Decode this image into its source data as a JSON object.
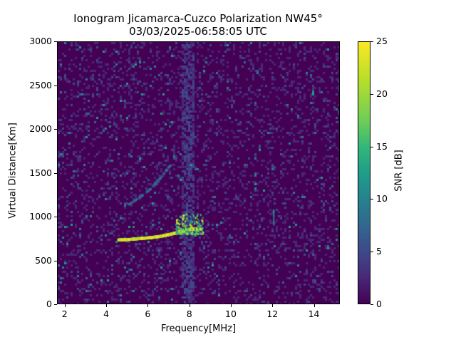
{
  "chart_data": {
    "type": "heatmap",
    "title": "Ionogram Jicamarca-Cuzco Polarization NW45°",
    "subtitle": "03/03/2025-06:58:05 UTC",
    "xlabel": "Frequency[MHz]",
    "ylabel": "Virtual Distance[Km]",
    "colorbar_label": "SNR [dB]",
    "colormap": "viridis",
    "xlim": [
      1.63,
      15.25
    ],
    "ylim": [
      0,
      3000
    ],
    "clim": [
      0,
      25
    ],
    "x_ticks": [
      2,
      4,
      6,
      8,
      10,
      12,
      14
    ],
    "y_ticks": [
      0,
      500,
      1000,
      1500,
      2000,
      2500,
      3000
    ],
    "colorbar_ticks": [
      0,
      5,
      10,
      15,
      20,
      25
    ],
    "grid": false,
    "features": [
      {
        "name": "main echo trace",
        "snr_db": 25,
        "points": [
          [
            4.5,
            750
          ],
          [
            5.0,
            755
          ],
          [
            5.5,
            765
          ],
          [
            6.0,
            775
          ],
          [
            6.5,
            790
          ],
          [
            7.0,
            815
          ],
          [
            7.5,
            845
          ],
          [
            8.0,
            875
          ],
          [
            8.5,
            870
          ]
        ]
      },
      {
        "name": "spread echo cluster",
        "snr_db": 22,
        "freq_range": [
          7.3,
          8.6
        ],
        "distance_range": [
          820,
          1050
        ]
      },
      {
        "name": "faint second hop trace",
        "snr_db": 10,
        "points": [
          [
            5.0,
            1150
          ],
          [
            5.5,
            1230
          ],
          [
            6.0,
            1320
          ],
          [
            6.5,
            1450
          ],
          [
            7.0,
            1600
          ]
        ]
      },
      {
        "name": "vertical spike 12 MHz",
        "snr_db": 14,
        "freq": 12.0,
        "distance_range": [
          930,
          1100
        ]
      },
      {
        "name": "interference band",
        "snr_db": 4,
        "freq_range": [
          7.6,
          8.2
        ],
        "distance_range": [
          0,
          3000
        ]
      }
    ]
  }
}
